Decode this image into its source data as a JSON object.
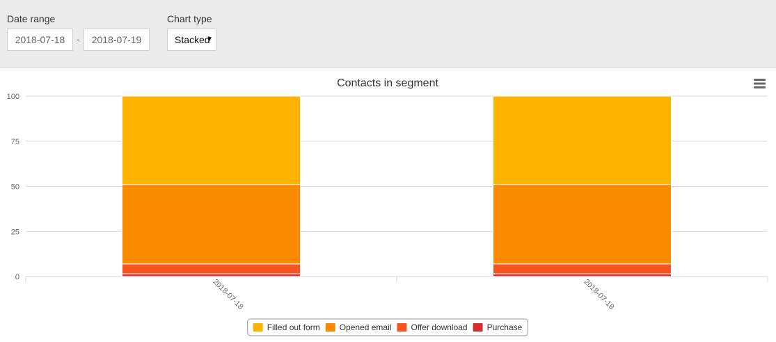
{
  "filters": {
    "date_range_label": "Date range",
    "date_from": "2018-07-18",
    "date_separator": "-",
    "date_to": "2018-07-19",
    "chart_type_label": "Chart type",
    "chart_type_value": "Stacked"
  },
  "chart_data": {
    "type": "bar",
    "stacked": true,
    "title": "Contacts in segment",
    "xlabel": "",
    "ylabel": "",
    "categories": [
      "2018-07-18",
      "2018-07-19"
    ],
    "ylim": [
      0,
      100
    ],
    "yticks": [
      0,
      25,
      50,
      75,
      100
    ],
    "grid": true,
    "legend_position": "bottom",
    "series": [
      {
        "name": "Purchase",
        "color": "#d42e2e",
        "values": [
          1.5,
          1.5
        ]
      },
      {
        "name": "Offer download",
        "color": "#f5561f",
        "values": [
          5.5,
          5.5
        ]
      },
      {
        "name": "Opened email",
        "color": "#fa8b00",
        "values": [
          44,
          44
        ]
      },
      {
        "name": "Filled out form",
        "color": "#ffb300",
        "values": [
          49,
          49
        ]
      }
    ],
    "legend_order": [
      "Filled out form",
      "Opened email",
      "Offer download",
      "Purchase"
    ]
  }
}
